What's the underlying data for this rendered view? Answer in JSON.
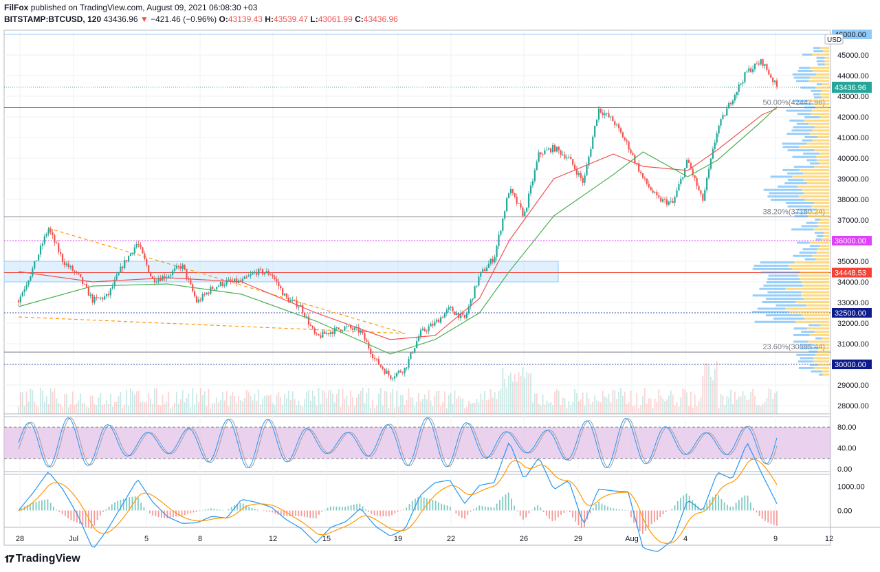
{
  "header": {
    "author": "FilFox",
    "published": "published on TradingView.com, August 09, 2021 06:08:30 +03",
    "symbol": "BITSTAMP:BTCUSD, 120",
    "last": "43436.96",
    "change": "−421.46 (−0.96%)",
    "o_label": "O:",
    "o": "43139.43",
    "h_label": "H:",
    "h": "43539.47",
    "l_label": "L:",
    "l": "43061.99",
    "c_label": "C:",
    "c": "43436.96"
  },
  "branding": "TradingView",
  "colors": {
    "up": "#26a69a",
    "down": "#ef5350",
    "ma_fast": "#ef5350",
    "ma_slow": "#4caf50",
    "magenta": "#e040fb",
    "blue_line": "#1a237e",
    "red_line": "#f44336",
    "stoch_k": "#2196f3",
    "stoch_d": "#9e9e9e",
    "stoch_band": "#e1bee7",
    "macd": "#2196f3",
    "signal": "#ff9800",
    "vp_up": "#fbc02d",
    "vp_down": "#42a5f5",
    "last_price_bg": "#26a69a"
  },
  "chart_data": {
    "type": "candlestick",
    "price_axis": {
      "range": [
        27600,
        46200
      ],
      "ticks": [
        "46000.00",
        "45000.00",
        "44000.00",
        "43000.00",
        "42000.00",
        "41000.00",
        "40000.00",
        "39000.00",
        "38000.00",
        "37000.00",
        "36000.00",
        "35000.00",
        "34000.00",
        "33000.00",
        "32000.00",
        "31000.00",
        "30000.00",
        "29000.00",
        "28000.00"
      ],
      "currency": "USD"
    },
    "time_axis": {
      "labels": [
        "28",
        "Jul",
        "5",
        "8",
        "12",
        "15",
        "19",
        "22",
        "26",
        "29",
        "Aug",
        "4",
        "9",
        "12"
      ]
    },
    "price_path": [
      [
        0,
        33100
      ],
      [
        1,
        34700
      ],
      [
        2,
        36600
      ],
      [
        3,
        35000
      ],
      [
        4,
        34300
      ],
      [
        5,
        33100
      ],
      [
        6,
        33300
      ],
      [
        7,
        34800
      ],
      [
        8,
        35900
      ],
      [
        9,
        34100
      ],
      [
        10,
        34300
      ],
      [
        11,
        34800
      ],
      [
        12,
        33000
      ],
      [
        13,
        33700
      ],
      [
        14,
        34000
      ],
      [
        15,
        34000
      ],
      [
        16,
        34500
      ],
      [
        17,
        34400
      ],
      [
        18,
        33200
      ],
      [
        19,
        32800
      ],
      [
        20,
        31300
      ],
      [
        21,
        31600
      ],
      [
        22,
        31800
      ],
      [
        23,
        31600
      ],
      [
        24,
        30200
      ],
      [
        25,
        29400
      ],
      [
        26,
        29800
      ],
      [
        27,
        31500
      ],
      [
        28,
        32000
      ],
      [
        29,
        32700
      ],
      [
        30,
        32200
      ],
      [
        31,
        34300
      ],
      [
        32,
        35200
      ],
      [
        33,
        38500
      ],
      [
        34,
        37200
      ],
      [
        35,
        40200
      ],
      [
        36,
        40500
      ],
      [
        37,
        40000
      ],
      [
        38,
        38800
      ],
      [
        39,
        42400
      ],
      [
        40,
        41800
      ],
      [
        41,
        40600
      ],
      [
        42,
        39000
      ],
      [
        43,
        38000
      ],
      [
        44,
        37800
      ],
      [
        45,
        39900
      ],
      [
        46,
        37900
      ],
      [
        47,
        41400
      ],
      [
        48,
        42900
      ],
      [
        49,
        44200
      ],
      [
        50,
        44700
      ],
      [
        51,
        43440
      ]
    ],
    "moving_averages": [
      {
        "role": "fast",
        "path": [
          [
            0,
            34500
          ],
          [
            5,
            34000
          ],
          [
            10,
            34200
          ],
          [
            15,
            34000
          ],
          [
            20,
            32500
          ],
          [
            25,
            31200
          ],
          [
            28,
            31400
          ],
          [
            31,
            33200
          ],
          [
            33,
            36000
          ],
          [
            36,
            39000
          ],
          [
            40,
            40200
          ],
          [
            42,
            39600
          ],
          [
            45,
            39400
          ],
          [
            47,
            40400
          ],
          [
            50,
            42100
          ],
          [
            51,
            42400
          ]
        ]
      },
      {
        "role": "slow",
        "path": [
          [
            0,
            32800
          ],
          [
            5,
            33800
          ],
          [
            10,
            33900
          ],
          [
            15,
            33400
          ],
          [
            20,
            32100
          ],
          [
            25,
            30500
          ],
          [
            28,
            31200
          ],
          [
            31,
            32500
          ],
          [
            33,
            34500
          ],
          [
            36,
            37200
          ],
          [
            40,
            39200
          ],
          [
            42,
            40300
          ],
          [
            45,
            39100
          ],
          [
            47,
            39900
          ],
          [
            50,
            41800
          ],
          [
            51,
            42500
          ]
        ]
      }
    ],
    "horizontal_levels": [
      {
        "value": 36000,
        "label": "36000.00"
      },
      {
        "value": 34448.53,
        "label": "34448.53"
      },
      {
        "value": 32500,
        "label": "32500.00"
      },
      {
        "value": 30000,
        "label": "30000.00"
      },
      {
        "value": 46000,
        "label": "46000.00"
      }
    ],
    "fib_levels": [
      {
        "value": 42447.96,
        "label": "50.00%(42447.96)"
      },
      {
        "value": 37150.24,
        "label": "38.20%(37150.24)"
      },
      {
        "value": 30595.44,
        "label": "23.60%(30595.44)"
      }
    ],
    "last_price": {
      "value": 43436.96,
      "label": "43436.96"
    },
    "zone": {
      "from_value": 34000,
      "to_value": 35000
    },
    "trendlines": [
      {
        "from": [
          0,
          32300
        ],
        "to": [
          26,
          31500
        ]
      },
      {
        "from": [
          2,
          36600
        ],
        "to": [
          26,
          31500
        ]
      }
    ],
    "stochastic": {
      "range": [
        -5,
        100
      ],
      "ticks": [
        "80.00",
        "40.00",
        "0.00"
      ],
      "band": [
        20,
        80
      ]
    },
    "macd": {
      "range": [
        -700,
        1500
      ],
      "ticks": [
        "1000.00",
        "0.00"
      ]
    }
  }
}
